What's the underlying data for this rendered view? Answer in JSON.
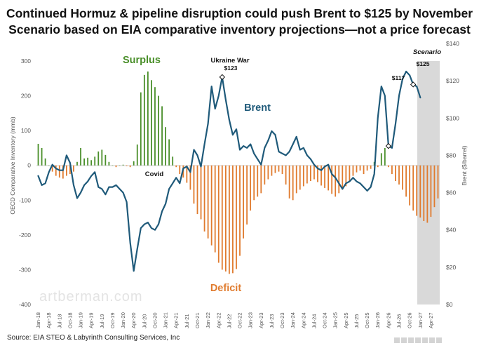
{
  "source": "Source: EIA STEO & Labyrinth Consulting Services, Inc",
  "watermark": "artberman.com",
  "chart_data": {
    "type": "bar+line",
    "title": "Continued Hormuz & pipeline disruption could push Brent to $125 by November",
    "subtitle": "Scenario based on EIA comparative inventory projections—not a price forecast",
    "ylabel_left": "OECD Comparative Inventory (mmb)",
    "ylabel_right": "Brent ($/barrel)",
    "ylim_left": [
      -400,
      300
    ],
    "ylim_right": [
      0,
      140
    ],
    "yticks_left": [
      "300",
      "200",
      "100",
      "0",
      "-100",
      "-200",
      "-300",
      "-400"
    ],
    "yticks_right": [
      "$140",
      "$120",
      "$100",
      "$80",
      "$60",
      "$40",
      "$20",
      "$0"
    ],
    "xtick_labels": [
      "Jan-18",
      "Apr-18",
      "Jul-18",
      "Oct-18",
      "Jan-19",
      "Apr-19",
      "Jul-19",
      "Oct-19",
      "Jan-20",
      "Apr-20",
      "Jul-20",
      "Oct-20",
      "Jan-21",
      "Apr-21",
      "Jul-21",
      "Oct-21",
      "Jan-22",
      "Apr-22",
      "Jul-22",
      "Oct-22",
      "Jan-23",
      "Apr-23",
      "Jul-23",
      "Oct-23",
      "Jan-24",
      "Apr-24",
      "Jul-24",
      "Oct-24",
      "Jan-25",
      "Apr-25",
      "Jul-25",
      "Oct-25",
      "Jan-26",
      "Apr-26",
      "Jul-26",
      "Oct-26",
      "Jan-27",
      "Apr-27"
    ],
    "x_start": "Jan-18",
    "x_end": "Jun-27",
    "grid": false,
    "legend": "none",
    "colors": {
      "surplus": "#4a8f2a",
      "deficit": "#e07b2e",
      "brent": "#1f5a7a",
      "scenario_shade": "#d9d9d9"
    },
    "inventory_mmb": [
      62,
      50,
      20,
      0,
      -18,
      -30,
      -35,
      -38,
      -30,
      -25,
      -18,
      10,
      50,
      20,
      22,
      15,
      25,
      40,
      45,
      30,
      10,
      0,
      -5,
      0,
      2,
      -2,
      -5,
      12,
      60,
      210,
      260,
      270,
      245,
      225,
      200,
      170,
      110,
      75,
      25,
      -5,
      -25,
      -35,
      -50,
      -70,
      -110,
      -140,
      -155,
      -190,
      -210,
      -230,
      -250,
      -280,
      -300,
      -305,
      -312,
      -310,
      -298,
      -260,
      -210,
      -170,
      -130,
      -100,
      -90,
      -80,
      -55,
      -40,
      -30,
      -22,
      -18,
      -25,
      -55,
      -95,
      -100,
      -80,
      -70,
      -60,
      -52,
      -45,
      -40,
      -48,
      -58,
      -65,
      -72,
      -82,
      -90,
      -80,
      -70,
      -60,
      -45,
      -30,
      -20,
      -15,
      -25,
      -15,
      -10,
      10,
      -5,
      35,
      50,
      -5,
      -25,
      -45,
      -55,
      -70,
      -90,
      -115,
      -130,
      -145,
      -150,
      -160,
      -165,
      -148,
      -120,
      -95
    ],
    "brent_usd": [
      69,
      64,
      65,
      71,
      75,
      73,
      72,
      72,
      80,
      76,
      64,
      57,
      60,
      64,
      66,
      69,
      71,
      63,
      62,
      59,
      63,
      63,
      64,
      62,
      60,
      55,
      33,
      18,
      30,
      41,
      43,
      44,
      41,
      40,
      43,
      50,
      54,
      62,
      65,
      68,
      65,
      73,
      74,
      71,
      83,
      80,
      74,
      86,
      97,
      117,
      105,
      112,
      122,
      110,
      99,
      91,
      94,
      83,
      85,
      84,
      86,
      81,
      78,
      75,
      84,
      88,
      93,
      91,
      82,
      81,
      80,
      82,
      86,
      90,
      83,
      84,
      80,
      78,
      75,
      73,
      72,
      74,
      75,
      70,
      68,
      65,
      62,
      65,
      66,
      68,
      66,
      65,
      63,
      61,
      63,
      70,
      100,
      117,
      112,
      85,
      84,
      97,
      112,
      121,
      125,
      123,
      118,
      117,
      111
    ]
  }
}
